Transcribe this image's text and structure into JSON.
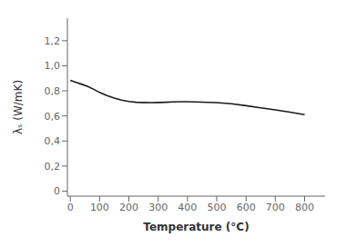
{
  "chart_data": {
    "type": "line",
    "x": [
      0,
      20,
      40,
      60,
      80,
      100,
      125,
      150,
      175,
      200,
      225,
      250,
      275,
      300,
      325,
      350,
      375,
      400,
      425,
      450,
      475,
      500,
      550,
      600,
      650,
      700,
      750,
      800
    ],
    "values": [
      0.883,
      0.868,
      0.852,
      0.835,
      0.812,
      0.787,
      0.762,
      0.742,
      0.726,
      0.715,
      0.709,
      0.707,
      0.706,
      0.707,
      0.709,
      0.712,
      0.713,
      0.714,
      0.712,
      0.71,
      0.708,
      0.706,
      0.697,
      0.682,
      0.665,
      0.648,
      0.63,
      0.61
    ],
    "xlabel": "Temperature (°C)",
    "ylabel": "λₛ (W/mK)",
    "xlim": [
      -10,
      870
    ],
    "ylim": [
      -0.04,
      1.38
    ],
    "xticks": [
      0,
      100,
      200,
      300,
      400,
      500,
      600,
      700,
      800
    ],
    "yticks": [
      0,
      {
        "value": 0.2,
        "label": "0,2"
      },
      {
        "value": 0.4,
        "label": "0,4"
      },
      {
        "value": 0.6,
        "label": "0,6"
      },
      {
        "value": 0.8,
        "label": "0,8"
      },
      {
        "value": 1.0,
        "label": "1,0"
      },
      {
        "value": 1.2,
        "label": "1,2"
      }
    ],
    "color": "#1a1a1a",
    "grid": false
  }
}
